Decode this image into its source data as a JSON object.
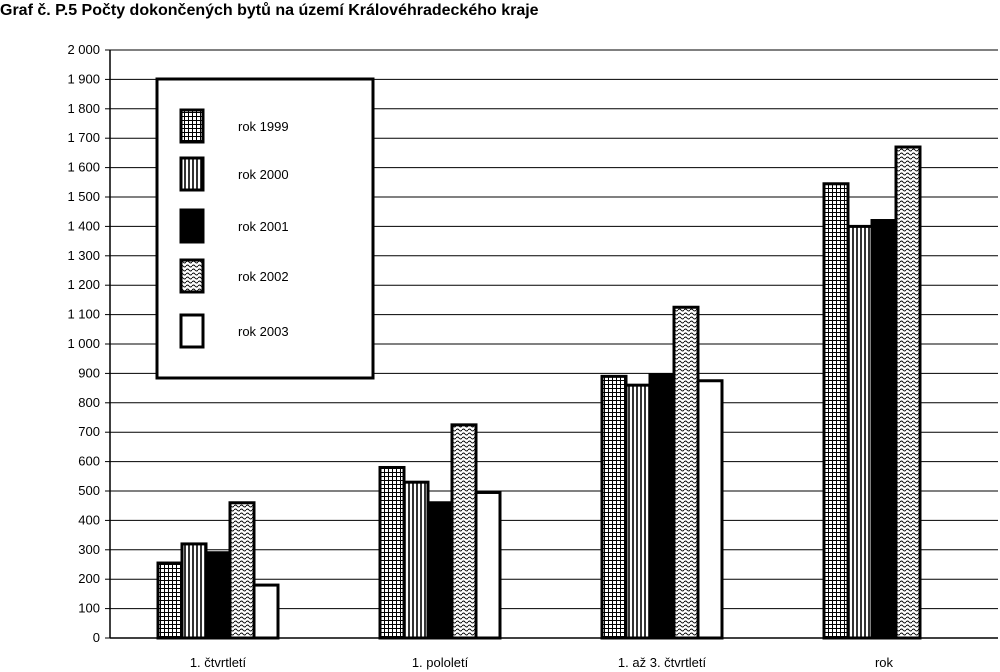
{
  "chart_data": {
    "type": "bar",
    "title": "Graf č. P.5 Počty dokončených bytů na území Královéhradeckého kraje",
    "xlabel": "",
    "ylabel": "",
    "ylim": [
      0,
      2000
    ],
    "yticks": [
      "0",
      "100",
      "200",
      "300",
      "400",
      "500",
      "600",
      "700",
      "800",
      "900",
      "1 000",
      "1 100",
      "1 200",
      "1 300",
      "1 400",
      "1 500",
      "1 600",
      "1 700",
      "1 800",
      "1 900",
      "2 000"
    ],
    "categories": [
      "1. čtvrtletí",
      "1. pololetí",
      "1. až 3. čtvrtletí",
      "rok"
    ],
    "series": [
      {
        "name": "rok 1999",
        "pattern": "grid",
        "values": [
          255,
          580,
          890,
          1545
        ]
      },
      {
        "name": "rok 2000",
        "pattern": "vertical-lines",
        "values": [
          320,
          530,
          860,
          1400
        ]
      },
      {
        "name": "rok 2001",
        "pattern": "solid-black",
        "values": [
          290,
          460,
          895,
          1420
        ]
      },
      {
        "name": "rok 2002",
        "pattern": "wavy",
        "values": [
          460,
          725,
          1125,
          1670
        ]
      },
      {
        "name": "rok 2003",
        "pattern": "white",
        "values": [
          180,
          495,
          875,
          null
        ]
      }
    ],
    "grid": true,
    "legend_position": "top-left"
  }
}
